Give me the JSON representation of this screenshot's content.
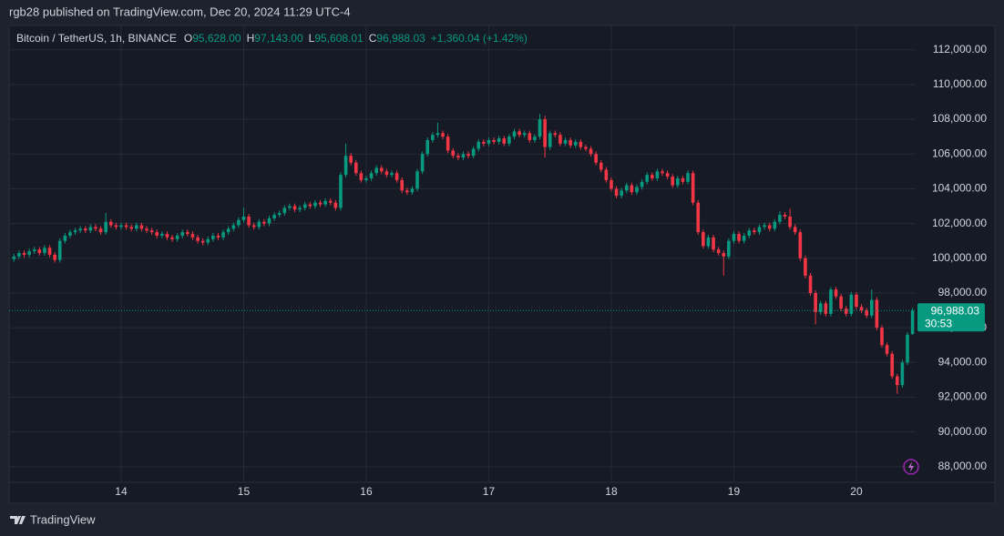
{
  "header": {
    "published": "rgb28 published on TradingView.com, Dec 20, 2024 11:29 UTC-4"
  },
  "footer": {
    "brand": "TradingView"
  },
  "chart_data": {
    "type": "candlestick",
    "title": "Bitcoin / TetherUS, 1h, BINANCE",
    "legend_values": [
      {
        "label": "O",
        "value": "95,628.00"
      },
      {
        "label": "H",
        "value": "97,143.00"
      },
      {
        "label": "L",
        "value": "95,608.01"
      },
      {
        "label": "C",
        "value": "96,988.03"
      }
    ],
    "change": "+1,360.04 (+1.42%)",
    "last_price_label": "96,988.03",
    "countdown": "30:53",
    "up_color": "#089981",
    "down_color": "#f23645",
    "grid": true,
    "ylim": [
      87100,
      113400
    ],
    "yticks": [
      {
        "value": 88000,
        "label": "88,000.00"
      },
      {
        "value": 90000,
        "label": "90,000.00"
      },
      {
        "value": 92000,
        "label": "92,000.00"
      },
      {
        "value": 94000,
        "label": "94,000.00"
      },
      {
        "value": 96000,
        "label": "96,000.00"
      },
      {
        "value": 98000,
        "label": "98,000.00"
      },
      {
        "value": 100000,
        "label": "100,000.00"
      },
      {
        "value": 102000,
        "label": "102,000.00"
      },
      {
        "value": 104000,
        "label": "104,000.00"
      },
      {
        "value": 106000,
        "label": "106,000.00"
      },
      {
        "value": 108000,
        "label": "108,000.00"
      },
      {
        "value": 110000,
        "label": "110,000.00"
      },
      {
        "value": 112000,
        "label": "112,000.00"
      }
    ],
    "categories": [
      null,
      null,
      null,
      null,
      null,
      null,
      null,
      null,
      null,
      null,
      null,
      null,
      null,
      null,
      null,
      null,
      null,
      null,
      null,
      null,
      null,
      "14",
      null,
      null,
      null,
      null,
      null,
      null,
      null,
      null,
      null,
      null,
      null,
      null,
      null,
      null,
      null,
      null,
      null,
      null,
      null,
      null,
      null,
      null,
      null,
      "15",
      null,
      null,
      null,
      null,
      null,
      null,
      null,
      null,
      null,
      null,
      null,
      null,
      null,
      null,
      null,
      null,
      null,
      null,
      null,
      null,
      null,
      null,
      null,
      "16",
      null,
      null,
      null,
      null,
      null,
      null,
      null,
      null,
      null,
      null,
      null,
      null,
      null,
      null,
      null,
      null,
      null,
      null,
      null,
      null,
      null,
      null,
      null,
      "17",
      null,
      null,
      null,
      null,
      null,
      null,
      null,
      null,
      null,
      null,
      null,
      null,
      null,
      null,
      null,
      null,
      null,
      null,
      null,
      null,
      null,
      null,
      null,
      "18",
      null,
      null,
      null,
      null,
      null,
      null,
      null,
      null,
      null,
      null,
      null,
      null,
      null,
      null,
      null,
      null,
      null,
      null,
      null,
      null,
      null,
      null,
      null,
      "19",
      null,
      null,
      null,
      null,
      null,
      null,
      null,
      null,
      null,
      null,
      null,
      null,
      null,
      null,
      null,
      null,
      null,
      null,
      null,
      null,
      null,
      null,
      null,
      "20",
      null,
      null,
      null,
      null,
      null,
      null,
      null,
      null,
      null,
      null,
      null
    ],
    "open": [
      99950,
      100100,
      100300,
      100200,
      100400,
      100500,
      100300,
      100600,
      100200,
      99900,
      101000,
      101300,
      101500,
      101600,
      101700,
      101600,
      101800,
      101700,
      101500,
      102100,
      101900,
      101800,
      101900,
      101800,
      101700,
      101900,
      101700,
      101600,
      101500,
      101300,
      101400,
      101200,
      101100,
      101300,
      101500,
      101400,
      101200,
      101000,
      100900,
      101100,
      101300,
      101200,
      101500,
      101700,
      101900,
      102200,
      102400,
      101900,
      101800,
      102100,
      102000,
      102300,
      102500,
      102600,
      102900,
      103000,
      102800,
      102900,
      103100,
      103000,
      103200,
      103100,
      103300,
      103200,
      102900,
      104800,
      105900,
      105500,
      104900,
      104500,
      104600,
      104900,
      105200,
      105000,
      104800,
      104900,
      104500,
      103900,
      103800,
      104000,
      105000,
      106000,
      106800,
      107100,
      107200,
      107000,
      106200,
      105900,
      105800,
      106000,
      105900,
      106300,
      106700,
      106600,
      106800,
      106700,
      106900,
      106600,
      107000,
      107300,
      107100,
      107200,
      106800,
      107000,
      108000,
      106400,
      107200,
      107100,
      106600,
      106800,
      106500,
      106700,
      106400,
      106300,
      106000,
      105500,
      105100,
      104500,
      104000,
      103600,
      103900,
      104200,
      103800,
      104100,
      104400,
      104800,
      104600,
      105000,
      104900,
      104700,
      104200,
      104600,
      104400,
      104900,
      103200,
      101500,
      100700,
      101200,
      100500,
      100300,
      100100,
      101000,
      101400,
      101000,
      101300,
      101600,
      101500,
      101800,
      101900,
      101700,
      102100,
      102500,
      102400,
      101800,
      101500,
      100000,
      99000,
      98000,
      96900,
      97400,
      96800,
      98200,
      97800,
      97100,
      96800,
      97900,
      97200,
      97000,
      96700,
      97600,
      96000,
      95000,
      94500,
      93200,
      92700,
      94000,
      95628
    ],
    "high": [
      100250,
      100450,
      100450,
      100550,
      100650,
      100650,
      100750,
      100750,
      100350,
      101150,
      101450,
      101650,
      101750,
      101850,
      101850,
      101950,
      101950,
      101850,
      102600,
      102250,
      102050,
      102050,
      102050,
      101950,
      102050,
      102050,
      101850,
      101750,
      101650,
      101550,
      101550,
      101350,
      101450,
      101650,
      101650,
      101550,
      101350,
      101150,
      101250,
      101450,
      101450,
      101650,
      101850,
      102050,
      102350,
      102900,
      102550,
      102050,
      102250,
      102250,
      102450,
      102650,
      102750,
      103050,
      103150,
      103150,
      103050,
      103250,
      103250,
      103350,
      103350,
      103450,
      103450,
      103350,
      104950,
      106600,
      106050,
      105650,
      105050,
      104750,
      105050,
      105350,
      105350,
      105150,
      105050,
      105050,
      104650,
      104050,
      104150,
      105150,
      106150,
      106950,
      107250,
      107800,
      107350,
      107150,
      106350,
      106050,
      106150,
      106150,
      106450,
      106850,
      106850,
      106950,
      106950,
      107050,
      107050,
      107150,
      107450,
      107450,
      107350,
      107350,
      107150,
      108300,
      108200,
      107350,
      107350,
      107250,
      106950,
      106950,
      106850,
      106850,
      106550,
      106450,
      106150,
      105650,
      105250,
      104650,
      104150,
      104050,
      104350,
      104350,
      104250,
      104550,
      104950,
      104950,
      105150,
      105150,
      105050,
      104850,
      104750,
      104750,
      105050,
      105050,
      103350,
      101650,
      101350,
      101350,
      100650,
      100450,
      101150,
      101550,
      101550,
      101450,
      101750,
      101750,
      101950,
      102050,
      102050,
      102250,
      102700,
      102650,
      102850,
      101950,
      101650,
      100150,
      99150,
      98150,
      97550,
      97550,
      98350,
      98350,
      97950,
      97250,
      98050,
      98050,
      97350,
      97150,
      98200,
      97750,
      96150,
      95150,
      94650,
      93350,
      94150,
      95750,
      97143
    ],
    "low": [
      99800,
      99950,
      100050,
      100050,
      100250,
      100150,
      100150,
      100050,
      99750,
      99750,
      100850,
      101150,
      101350,
      101450,
      101450,
      101450,
      101550,
      101350,
      101350,
      101750,
      101650,
      101650,
      101650,
      101550,
      101550,
      101550,
      101450,
      101350,
      101150,
      101150,
      101050,
      100950,
      100950,
      101150,
      101250,
      101050,
      100850,
      100750,
      100750,
      100950,
      101050,
      101050,
      101350,
      101550,
      101750,
      102050,
      101750,
      101650,
      101650,
      101850,
      101850,
      102150,
      102350,
      102450,
      102750,
      102650,
      102650,
      102750,
      102850,
      102850,
      102950,
      102950,
      103050,
      102750,
      102750,
      104650,
      105350,
      104750,
      104350,
      104350,
      104450,
      104750,
      104850,
      104650,
      104650,
      104350,
      103750,
      103650,
      103650,
      103850,
      104850,
      105850,
      106650,
      106950,
      106850,
      106050,
      105750,
      105650,
      105650,
      105750,
      105750,
      106150,
      106450,
      106450,
      106550,
      106550,
      106450,
      106450,
      106850,
      106950,
      106950,
      106650,
      106650,
      106850,
      105800,
      106250,
      106950,
      106450,
      106450,
      106350,
      106350,
      106250,
      106150,
      105850,
      105350,
      104950,
      104350,
      103850,
      103450,
      103450,
      103750,
      103650,
      103650,
      103950,
      104250,
      104450,
      104450,
      104750,
      104550,
      104050,
      104050,
      104250,
      104250,
      103050,
      101350,
      100550,
      100550,
      100350,
      100150,
      99000,
      99950,
      100850,
      100850,
      100850,
      101150,
      101350,
      101350,
      101650,
      101550,
      101550,
      101950,
      102250,
      101650,
      101350,
      99850,
      98850,
      97850,
      96200,
      96750,
      96650,
      96650,
      97650,
      96950,
      96650,
      96650,
      97050,
      96850,
      96550,
      96550,
      95850,
      94850,
      94350,
      93050,
      92200,
      92550,
      93850,
      95608.01
    ],
    "close": [
      100100,
      100300,
      100200,
      100400,
      100500,
      100300,
      100600,
      100200,
      99900,
      101000,
      101300,
      101500,
      101600,
      101700,
      101600,
      101800,
      101700,
      101500,
      102100,
      101900,
      101800,
      101900,
      101800,
      101700,
      101900,
      101700,
      101600,
      101500,
      101300,
      101400,
      101200,
      101100,
      101300,
      101500,
      101400,
      101200,
      101000,
      100900,
      101100,
      101300,
      101200,
      101500,
      101700,
      101900,
      102200,
      102400,
      101900,
      101800,
      102100,
      102000,
      102300,
      102500,
      102600,
      102900,
      103000,
      102800,
      102900,
      103100,
      103000,
      103200,
      103100,
      103300,
      103200,
      102900,
      104800,
      105900,
      105500,
      104900,
      104500,
      104600,
      104900,
      105200,
      105000,
      104800,
      104900,
      104500,
      103900,
      103800,
      104000,
      105000,
      106000,
      106800,
      107100,
      107200,
      107000,
      106200,
      105900,
      105800,
      106000,
      105900,
      106300,
      106700,
      106600,
      106800,
      106700,
      106900,
      106600,
      107000,
      107300,
      107100,
      107200,
      106800,
      107000,
      108000,
      106400,
      107200,
      107100,
      106600,
      106800,
      106500,
      106700,
      106400,
      106300,
      106000,
      105500,
      105100,
      104500,
      104000,
      103600,
      103900,
      104200,
      103800,
      104100,
      104400,
      104800,
      104600,
      105000,
      104900,
      104700,
      104200,
      104600,
      104400,
      104900,
      103200,
      101500,
      100700,
      101200,
      100500,
      100300,
      100100,
      101000,
      101400,
      101000,
      101300,
      101600,
      101500,
      101800,
      101900,
      101700,
      102100,
      102500,
      102400,
      101800,
      101500,
      100000,
      99000,
      98000,
      96900,
      97400,
      96800,
      98200,
      97800,
      97100,
      96800,
      97900,
      97200,
      97000,
      96700,
      97600,
      96000,
      95000,
      94500,
      93200,
      92700,
      94000,
      95600,
      96988.03
    ]
  }
}
